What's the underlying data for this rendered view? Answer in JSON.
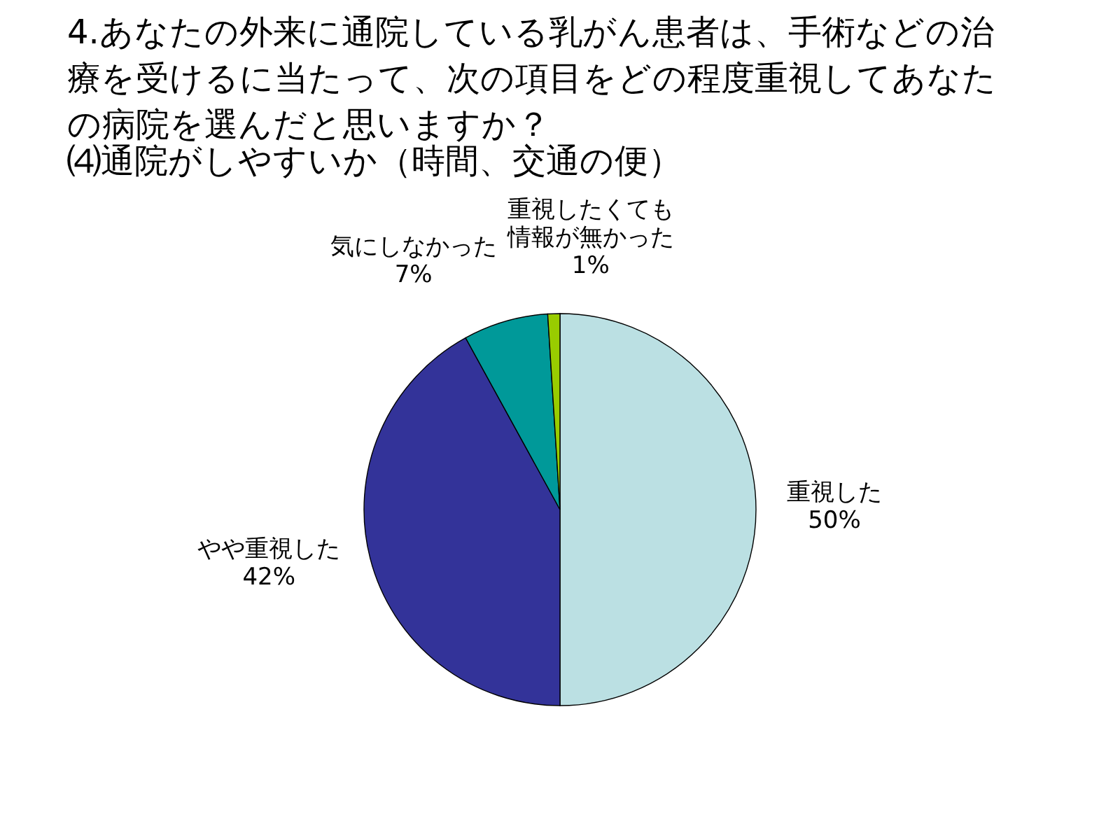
{
  "chart_data": {
    "type": "pie",
    "title": "4.あなたの外来に通院している乳がん患者は、手術などの治療を受けるに当たって、次の項目をどの程度重視してあなたの病院を選んだと思いますか？",
    "subtitle": "⑷通院がしやすいか（時間、交通の便）",
    "categories": [
      "重視した",
      "やや重視した",
      "気にしなかった",
      "重視したくても情報が無かった"
    ],
    "values": [
      50,
      42,
      7,
      1
    ],
    "colors": [
      "#bbe0e3",
      "#333399",
      "#009999",
      "#99cc00"
    ],
    "value_labels": [
      "50%",
      "42%",
      "7%",
      "1%"
    ]
  }
}
